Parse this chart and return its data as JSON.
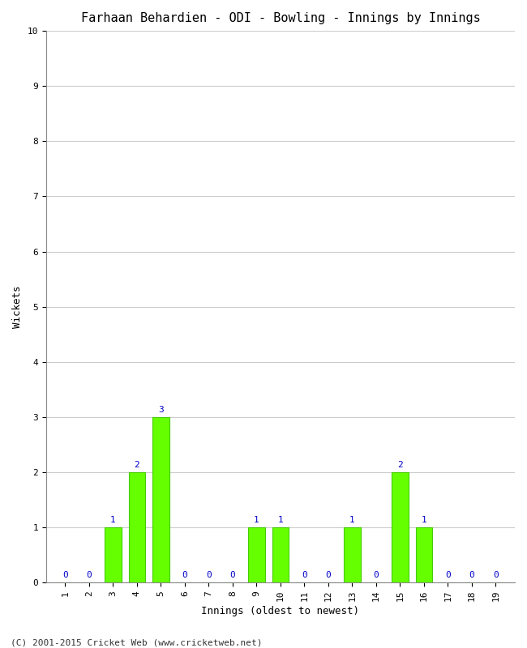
{
  "title": "Farhaan Behardien - ODI - Bowling - Innings by Innings",
  "xlabel": "Innings (oldest to newest)",
  "ylabel": "Wickets",
  "innings": [
    1,
    2,
    3,
    4,
    5,
    6,
    7,
    8,
    9,
    10,
    11,
    12,
    13,
    14,
    15,
    16,
    17,
    18,
    19
  ],
  "wickets": [
    0,
    0,
    1,
    2,
    3,
    0,
    0,
    0,
    1,
    1,
    0,
    0,
    1,
    0,
    2,
    1,
    0,
    0,
    0
  ],
  "bar_color": "#66ff00",
  "bar_edge_color": "#44cc00",
  "label_color": "#0000cc",
  "ylim": [
    0,
    10
  ],
  "yticks": [
    0,
    1,
    2,
    3,
    4,
    5,
    6,
    7,
    8,
    9,
    10
  ],
  "background_color": "#ffffff",
  "plot_bg_color": "#ffffff",
  "grid_color": "#cccccc",
  "footer": "(C) 2001-2015 Cricket Web (www.cricketweb.net)",
  "title_fontsize": 11,
  "axis_label_fontsize": 9,
  "tick_label_fontsize": 8,
  "bar_label_fontsize": 8,
  "footer_fontsize": 8
}
